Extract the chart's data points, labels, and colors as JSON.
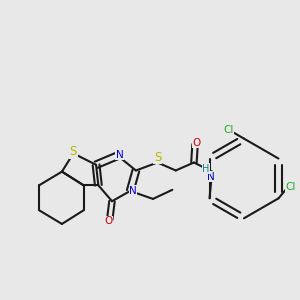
{
  "background_color": "#e8e8e8",
  "bond_color": "#1a1a1a",
  "bond_width": 1.5,
  "atom_colors": {
    "S": "#b8b800",
    "N": "#0000cc",
    "O": "#cc0000",
    "Cl": "#22aa22",
    "NH": "#008888",
    "C": "#1a1a1a"
  },
  "font_size": 7.5,
  "fig_size": [
    3.0,
    3.0
  ],
  "dpi": 100
}
